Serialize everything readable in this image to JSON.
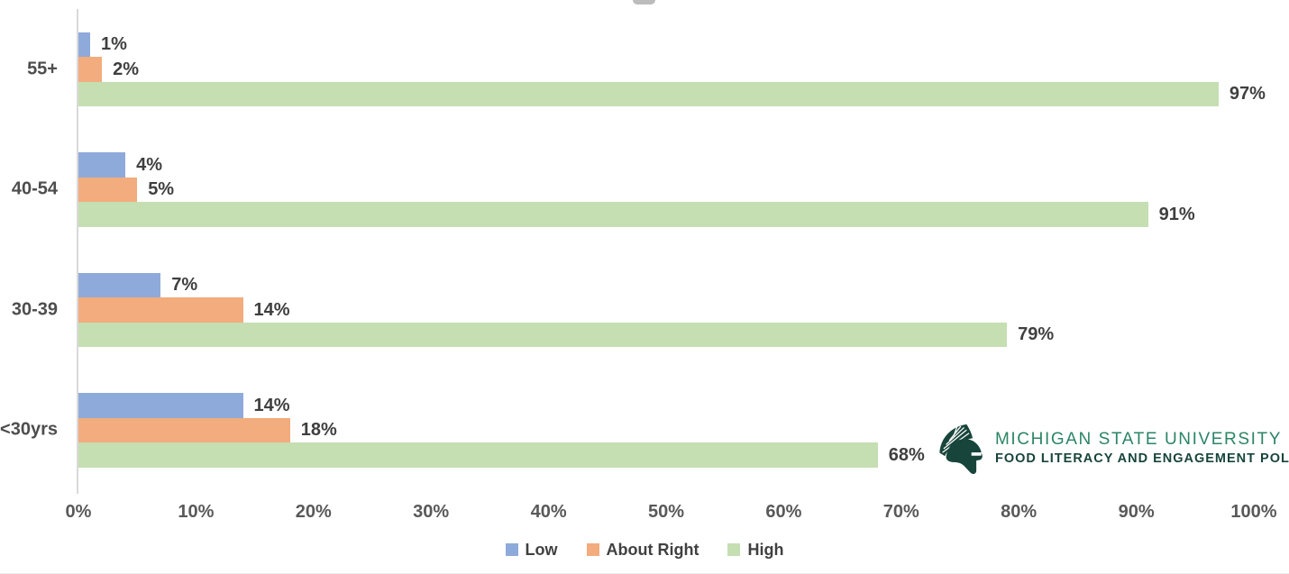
{
  "chart_data": {
    "type": "bar",
    "orientation": "horizontal",
    "title": "",
    "categories": [
      "55+",
      "40-54",
      "30-39",
      "<30yrs"
    ],
    "series": [
      {
        "name": "Low",
        "color": "#8EAADB",
        "values": [
          1,
          4,
          7,
          14
        ]
      },
      {
        "name": "About Right",
        "color": "#F2AC7D",
        "values": [
          2,
          5,
          14,
          18
        ]
      },
      {
        "name": "High",
        "color": "#C5DEB2",
        "values": [
          97,
          91,
          79,
          68
        ]
      }
    ],
    "data_label_suffix": "%",
    "x_ticks": [
      "0%",
      "10%",
      "20%",
      "30%",
      "40%",
      "50%",
      "60%",
      "70%",
      "80%",
      "90%",
      "100%"
    ],
    "xlim": [
      0,
      100
    ],
    "grid": false,
    "legend_position": "bottom",
    "axis_color": "#D9D9D9",
    "value_label_color": "#3F3F3F",
    "tick_label_color": "#595959",
    "category_label_color": "#4D4D4D"
  },
  "branding": {
    "org": "MICHIGAN STATE UNIVERSITY",
    "program": "FOOD LITERACY AND ENGAGEMENT POLL",
    "org_color": "#2B8565",
    "program_color": "#18453B",
    "helmet_color": "#18453B"
  }
}
